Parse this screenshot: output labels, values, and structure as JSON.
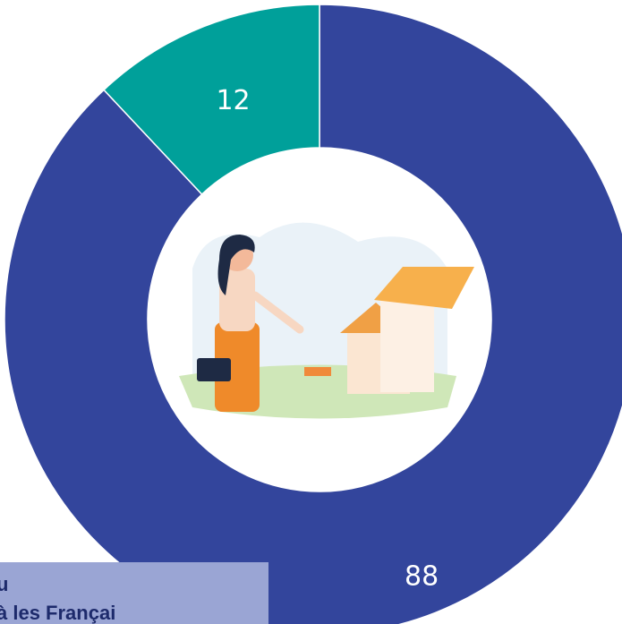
{
  "chart_data": {
    "type": "donut",
    "values": [
      88,
      12
    ],
    "colors": [
      "#33459c",
      "#00a09a"
    ],
    "annotations": [
      "u",
      "à les Françai"
    ]
  }
}
